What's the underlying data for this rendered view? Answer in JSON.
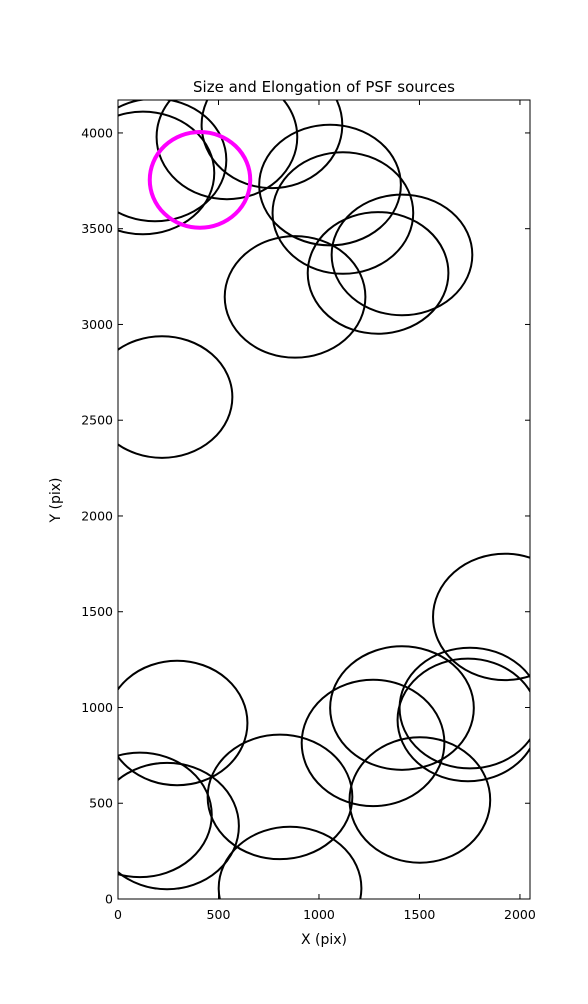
{
  "chart_data": {
    "type": "ellipse",
    "title": "Size and Elongation of PSF sources",
    "xlabel": "X (pix)",
    "ylabel": "Y (pix)",
    "xlim": [
      0,
      2050
    ],
    "ylim": [
      0,
      4172
    ],
    "xticks": [
      0,
      500,
      1000,
      1500,
      2000
    ],
    "yticks": [
      0,
      500,
      1000,
      1500,
      2000,
      2500,
      3000,
      3500,
      4000
    ],
    "color": "#000000",
    "x": [
      124,
      184,
      542,
      766,
      1055,
      1119,
      1413,
      1294,
      881,
      219,
      1925,
      294,
      1413,
      1751,
      1741,
      1269,
      806,
      1502,
      109,
      244,
      856
    ],
    "y": [
      3791,
      3859,
      3979,
      4042,
      3728,
      3582,
      3363,
      3269,
      3144,
      2621,
      1473,
      919,
      997,
      997,
      935,
      815,
      533,
      517,
      439,
      381,
      57
    ],
    "width": [
      710,
      710,
      700,
      700,
      705,
      700,
      700,
      700,
      700,
      700,
      715,
      700,
      715,
      700,
      700,
      710,
      720,
      700,
      715,
      715,
      710
    ],
    "height": [
      640,
      640,
      650,
      660,
      630,
      635,
      630,
      635,
      635,
      635,
      660,
      650,
      645,
      630,
      640,
      660,
      650,
      655,
      650,
      660,
      640
    ],
    "highlight": {
      "x": 408,
      "y": 3755,
      "width": 500,
      "height": 500,
      "color": "#ff00ff"
    }
  }
}
